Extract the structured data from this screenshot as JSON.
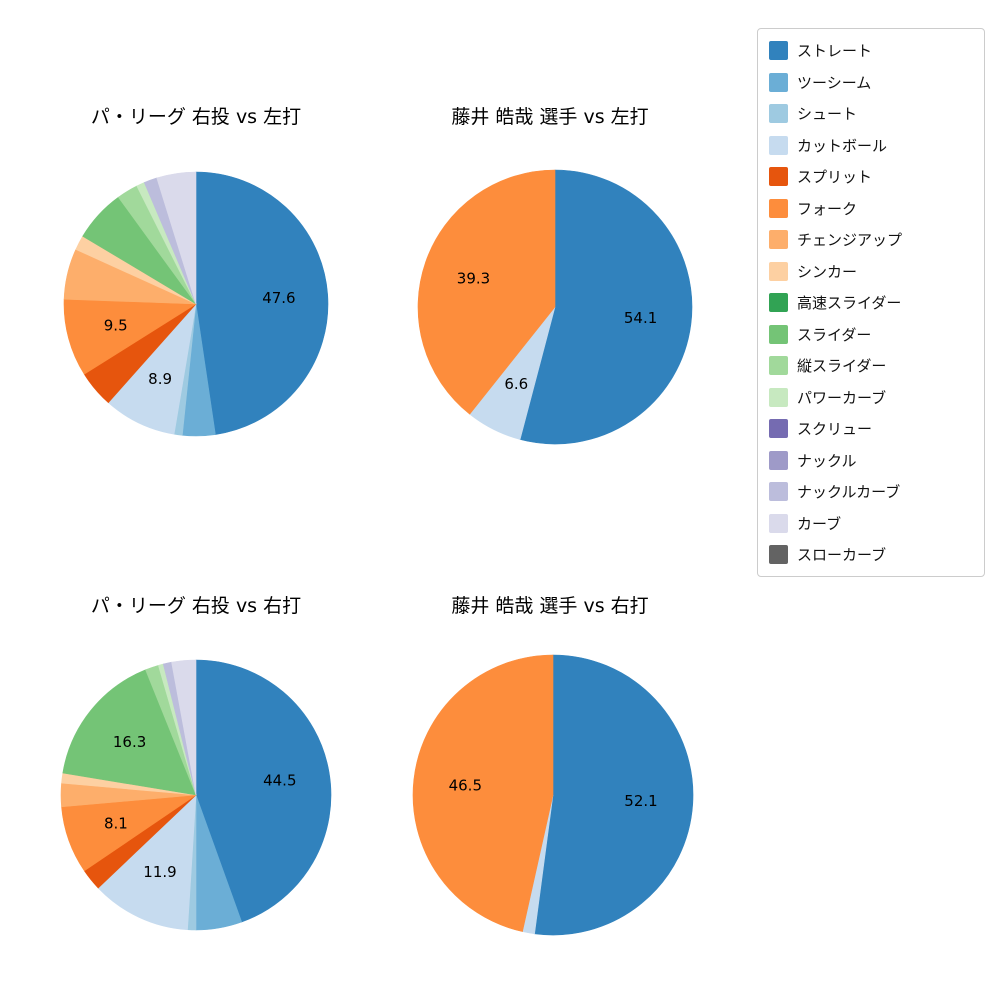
{
  "figure": {
    "background": "#ffffff"
  },
  "legend": {
    "position": "upper right",
    "items": [
      {
        "label": "ストレート",
        "color": "#3182bd"
      },
      {
        "label": "ツーシーム",
        "color": "#6baed6"
      },
      {
        "label": "シュート",
        "color": "#9ecae1"
      },
      {
        "label": "カットボール",
        "color": "#c6dbef"
      },
      {
        "label": "スプリット",
        "color": "#e6550d"
      },
      {
        "label": "フォーク",
        "color": "#fd8d3c"
      },
      {
        "label": "チェンジアップ",
        "color": "#fdae6b"
      },
      {
        "label": "シンカー",
        "color": "#fdd0a2"
      },
      {
        "label": "高速スライダー",
        "color": "#31a354"
      },
      {
        "label": "スライダー",
        "color": "#74c476"
      },
      {
        "label": "縦スライダー",
        "color": "#a1d99b"
      },
      {
        "label": "パワーカーブ",
        "color": "#c7e9c0"
      },
      {
        "label": "スクリュー",
        "color": "#756bb1"
      },
      {
        "label": "ナックル",
        "color": "#9e9ac8"
      },
      {
        "label": "ナックルカーブ",
        "color": "#bcbddc"
      },
      {
        "label": "カーブ",
        "color": "#dadaeb"
      },
      {
        "label": "スローカーブ",
        "color": "#636363"
      }
    ]
  },
  "chart_data": [
    {
      "type": "pie",
      "title": "パ・リーグ 右投 vs 左打",
      "start_angle": 90,
      "direction": "clockwise",
      "value_unit": "percent",
      "slices": [
        {
          "label": "ストレート",
          "value": 47.6,
          "pct_label": "47.6"
        },
        {
          "label": "ツーシーム",
          "value": 4.0
        },
        {
          "label": "シュート",
          "value": 1.0
        },
        {
          "label": "カットボール",
          "value": 8.9,
          "pct_label": "8.9"
        },
        {
          "label": "スプリット",
          "value": 4.5
        },
        {
          "label": "フォーク",
          "value": 9.5,
          "pct_label": "9.5"
        },
        {
          "label": "チェンジアップ",
          "value": 6.2
        },
        {
          "label": "シンカー",
          "value": 1.8
        },
        {
          "label": "スライダー",
          "value": 6.4
        },
        {
          "label": "縦スライダー",
          "value": 2.6
        },
        {
          "label": "パワーカーブ",
          "value": 1.0
        },
        {
          "label": "ナックルカーブ",
          "value": 1.6
        },
        {
          "label": "カーブ",
          "value": 4.8
        }
      ]
    },
    {
      "type": "pie",
      "title": "藤井 皓哉 選手 vs 左打",
      "start_angle": 90,
      "direction": "clockwise",
      "value_unit": "percent",
      "slices": [
        {
          "label": "ストレート",
          "value": 54.1,
          "pct_label": "54.1"
        },
        {
          "label": "カットボール",
          "value": 6.6,
          "pct_label": "6.6"
        },
        {
          "label": "フォーク",
          "value": 39.3,
          "pct_label": "39.3"
        }
      ]
    },
    {
      "type": "pie",
      "title": "パ・リーグ 右投 vs 右打",
      "start_angle": 90,
      "direction": "clockwise",
      "value_unit": "percent",
      "slices": [
        {
          "label": "ストレート",
          "value": 44.5,
          "pct_label": "44.5"
        },
        {
          "label": "ツーシーム",
          "value": 5.5
        },
        {
          "label": "シュート",
          "value": 1.0
        },
        {
          "label": "カットボール",
          "value": 11.9,
          "pct_label": "11.9"
        },
        {
          "label": "スプリット",
          "value": 2.6
        },
        {
          "label": "フォーク",
          "value": 8.1,
          "pct_label": "8.1"
        },
        {
          "label": "チェンジアップ",
          "value": 2.8
        },
        {
          "label": "シンカー",
          "value": 1.2
        },
        {
          "label": "スライダー",
          "value": 16.3,
          "pct_label": "16.3"
        },
        {
          "label": "縦スライダー",
          "value": 1.6
        },
        {
          "label": "パワーカーブ",
          "value": 0.6
        },
        {
          "label": "ナックルカーブ",
          "value": 1.0
        },
        {
          "label": "カーブ",
          "value": 2.9
        }
      ]
    },
    {
      "type": "pie",
      "title": "藤井 皓哉 選手 vs 右打",
      "start_angle": 90,
      "direction": "clockwise",
      "value_unit": "percent",
      "slices": [
        {
          "label": "ストレート",
          "value": 52.1,
          "pct_label": "52.1"
        },
        {
          "label": "カットボール",
          "value": 1.4
        },
        {
          "label": "フォーク",
          "value": 46.5,
          "pct_label": "46.5"
        }
      ]
    }
  ]
}
